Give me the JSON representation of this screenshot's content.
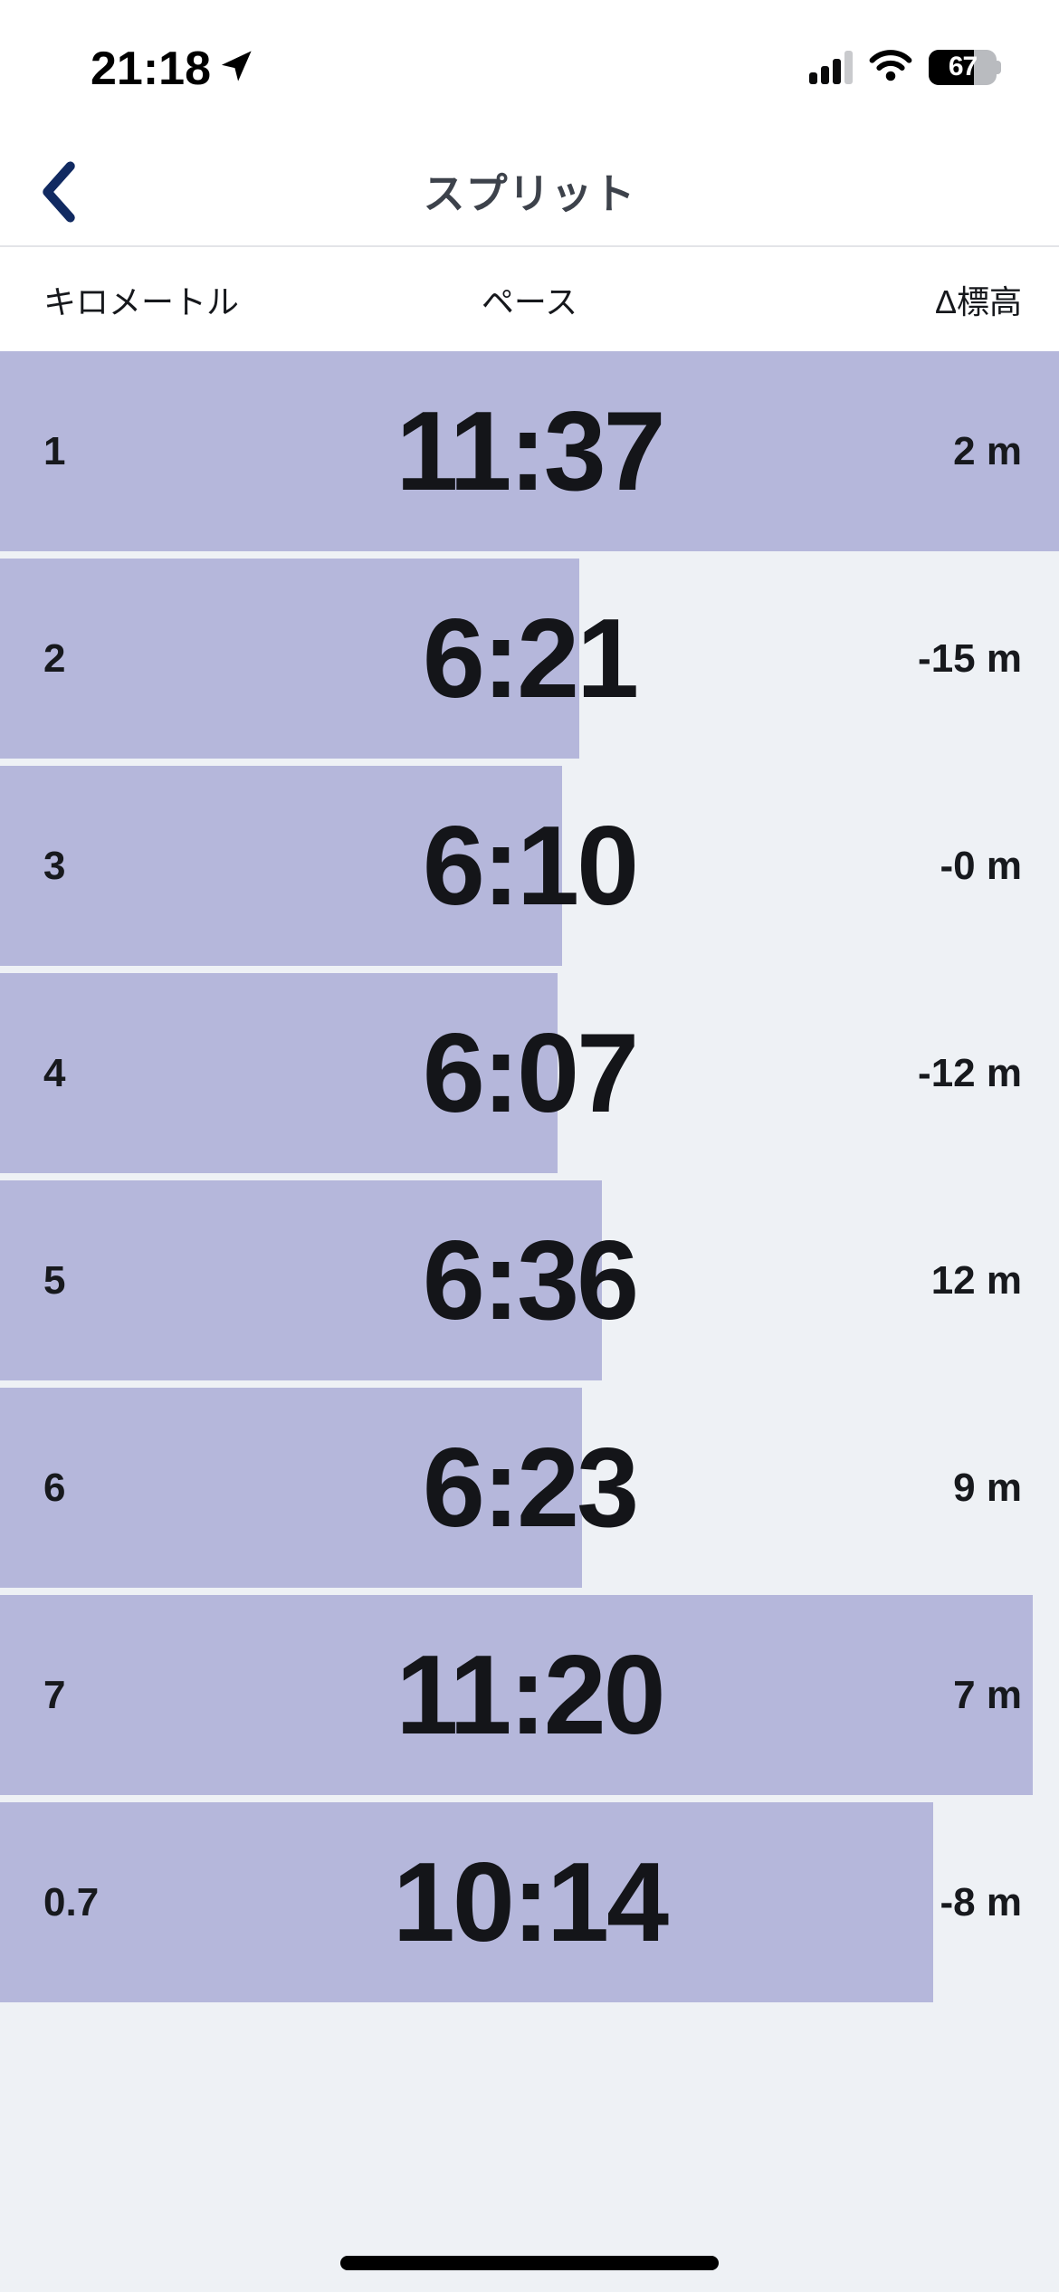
{
  "status_bar": {
    "time": "21:18",
    "battery_percent": "67"
  },
  "header": {
    "title": "スプリット"
  },
  "table": {
    "columns": {
      "km": "キロメートル",
      "pace": "ペース",
      "elevation": "Δ標高"
    },
    "rows": [
      {
        "km": "1",
        "pace": "11:37",
        "pace_seconds": 697,
        "elevation": "2 m"
      },
      {
        "km": "2",
        "pace": "6:21",
        "pace_seconds": 381,
        "elevation": "-15 m"
      },
      {
        "km": "3",
        "pace": "6:10",
        "pace_seconds": 370,
        "elevation": "-0 m"
      },
      {
        "km": "4",
        "pace": "6:07",
        "pace_seconds": 367,
        "elevation": "-12 m"
      },
      {
        "km": "5",
        "pace": "6:36",
        "pace_seconds": 396,
        "elevation": "12 m"
      },
      {
        "km": "6",
        "pace": "6:23",
        "pace_seconds": 383,
        "elevation": "9 m"
      },
      {
        "km": "7",
        "pace": "11:20",
        "pace_seconds": 680,
        "elevation": "7 m"
      },
      {
        "km": "0.7",
        "pace": "10:14",
        "pace_seconds": 614,
        "elevation": "-8 m"
      }
    ]
  },
  "colors": {
    "bar": "#b5b7db",
    "list_background": "#eef1f5",
    "back_chevron": "#112a61",
    "title_text": "#3d424b",
    "text": "#17191d"
  }
}
